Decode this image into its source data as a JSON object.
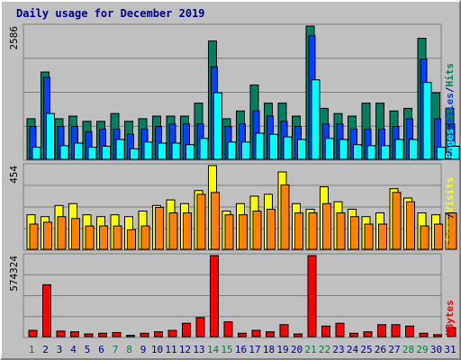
{
  "title": "Daily usage for December 2019",
  "colors": {
    "pages": "#00ffff",
    "files": "#0040ff",
    "hits": "#008060",
    "visits": "#ffff00",
    "sites": "#ff8000",
    "kbytes": "#ff0000",
    "weekend_label": "#008040",
    "weekday_label": "#00008b"
  },
  "chart_data": [
    {
      "type": "bar",
      "panel": "top",
      "ymax_label": "2586",
      "ylim": [
        0,
        2586
      ],
      "legend": [
        "Pages",
        "/",
        "Files",
        "/",
        "Hits"
      ],
      "series": [
        {
          "name": "Hits",
          "values": [
            800,
            1700,
            800,
            850,
            750,
            750,
            900,
            750,
            800,
            850,
            850,
            850,
            1100,
            2300,
            800,
            950,
            1450,
            1100,
            1100,
            850,
            2586,
            1000,
            900,
            850,
            1100,
            1100,
            950,
            1000,
            2350,
            1300,
            1000
          ]
        },
        {
          "name": "Files",
          "values": [
            650,
            1600,
            650,
            650,
            550,
            600,
            600,
            500,
            600,
            650,
            700,
            700,
            700,
            1800,
            650,
            700,
            950,
            850,
            750,
            650,
            2400,
            700,
            700,
            600,
            600,
            600,
            650,
            800,
            1950,
            800,
            700
          ]
        },
        {
          "name": "Pages",
          "values": [
            250,
            900,
            280,
            330,
            250,
            270,
            400,
            220,
            350,
            330,
            330,
            300,
            420,
            1300,
            350,
            350,
            520,
            500,
            450,
            400,
            1550,
            420,
            400,
            300,
            280,
            280,
            400,
            400,
            1500,
            250,
            270
          ]
        }
      ]
    },
    {
      "type": "bar",
      "panel": "middle",
      "ymax_label": "454",
      "ylim": [
        0,
        454
      ],
      "legend": [
        "Sites",
        "/",
        "Visits"
      ],
      "series": [
        {
          "name": "Visits",
          "values": [
            190,
            180,
            240,
            250,
            190,
            180,
            190,
            180,
            210,
            240,
            270,
            250,
            320,
            454,
            210,
            250,
            290,
            300,
            420,
            250,
            220,
            340,
            260,
            220,
            180,
            200,
            330,
            280,
            200,
            190,
            200
          ]
        },
        {
          "name": "Sites",
          "values": [
            140,
            150,
            180,
            170,
            130,
            130,
            130,
            110,
            130,
            230,
            200,
            200,
            300,
            310,
            190,
            190,
            210,
            220,
            350,
            200,
            200,
            250,
            200,
            180,
            140,
            140,
            310,
            260,
            130,
            140,
            200
          ]
        }
      ]
    },
    {
      "type": "bar",
      "panel": "bottom",
      "ymax_label": "574324",
      "ylim": [
        0,
        574324
      ],
      "legend": [
        "KBytes"
      ],
      "series": [
        {
          "name": "KBytes",
          "values": [
            50000,
            370000,
            45000,
            40000,
            25000,
            30000,
            35000,
            15000,
            30000,
            40000,
            50000,
            100000,
            140000,
            574324,
            110000,
            30000,
            50000,
            40000,
            90000,
            25000,
            574324,
            80000,
            100000,
            30000,
            40000,
            90000,
            90000,
            80000,
            30000,
            20000,
            70000
          ]
        }
      ]
    }
  ],
  "days": [
    {
      "label": "1",
      "weekend": true
    },
    {
      "label": "2",
      "weekend": false
    },
    {
      "label": "3",
      "weekend": false
    },
    {
      "label": "4",
      "weekend": false
    },
    {
      "label": "5",
      "weekend": false
    },
    {
      "label": "6",
      "weekend": false
    },
    {
      "label": "7",
      "weekend": true
    },
    {
      "label": "8",
      "weekend": true
    },
    {
      "label": "9",
      "weekend": false
    },
    {
      "label": "10",
      "weekend": false
    },
    {
      "label": "11",
      "weekend": false
    },
    {
      "label": "12",
      "weekend": false
    },
    {
      "label": "13",
      "weekend": false
    },
    {
      "label": "14",
      "weekend": true
    },
    {
      "label": "15",
      "weekend": true
    },
    {
      "label": "16",
      "weekend": false
    },
    {
      "label": "17",
      "weekend": false
    },
    {
      "label": "18",
      "weekend": false
    },
    {
      "label": "19",
      "weekend": false
    },
    {
      "label": "20",
      "weekend": false
    },
    {
      "label": "21",
      "weekend": true
    },
    {
      "label": "22",
      "weekend": true
    },
    {
      "label": "23",
      "weekend": false
    },
    {
      "label": "24",
      "weekend": false
    },
    {
      "label": "25",
      "weekend": false
    },
    {
      "label": "26",
      "weekend": false
    },
    {
      "label": "27",
      "weekend": false
    },
    {
      "label": "28",
      "weekend": true
    },
    {
      "label": "29",
      "weekend": true
    },
    {
      "label": "30",
      "weekend": false
    },
    {
      "label": "31",
      "weekend": false
    }
  ]
}
